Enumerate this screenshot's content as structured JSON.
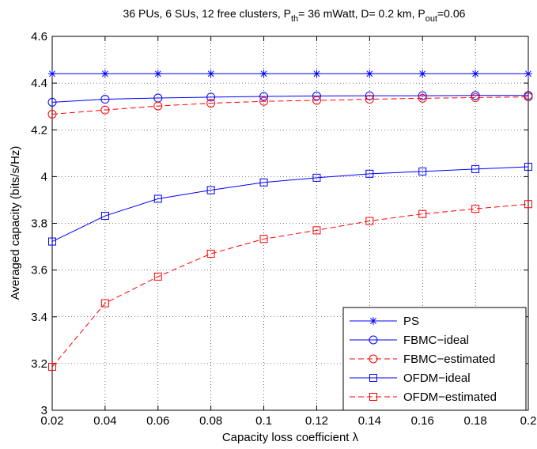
{
  "chart_data": {
    "type": "line",
    "title": {
      "part1": "36 PUs, 6 SUs, 12 free clusters, P",
      "sub1": "th",
      "part2": "= 36 mWatt, D= 0.2 km, P",
      "sub2": "out",
      "part3": "=0.06"
    },
    "xlabel": "Capacity loss coefficient λ",
    "ylabel": "Averaged capacity (bits/s/Hz)",
    "xlim": [
      0.02,
      0.2
    ],
    "ylim": [
      3,
      4.6
    ],
    "x_ticks": [
      "0.02",
      "0.04",
      "0.06",
      "0.08",
      "0.1",
      "0.12",
      "0.14",
      "0.16",
      "0.18",
      "0.2"
    ],
    "y_ticks": [
      "3",
      "3.2",
      "3.4",
      "3.6",
      "3.8",
      "4",
      "4.2",
      "4.4",
      "4.6"
    ],
    "grid": true,
    "legend_position": "bottom-right",
    "x": [
      0.02,
      0.04,
      0.06,
      0.08,
      0.1,
      0.12,
      0.14,
      0.16,
      0.18,
      0.2
    ],
    "series": [
      {
        "name": "PS",
        "color": "#0000ff",
        "dash": "solid",
        "marker": "asterisk",
        "values": [
          4.44,
          4.44,
          4.44,
          4.44,
          4.44,
          4.44,
          4.44,
          4.44,
          4.44,
          4.44
        ]
      },
      {
        "name": "FBMC−ideal",
        "color": "#0000ff",
        "dash": "solid",
        "marker": "circle",
        "values": [
          4.318,
          4.331,
          4.336,
          4.34,
          4.343,
          4.345,
          4.346,
          4.346,
          4.347,
          4.347
        ]
      },
      {
        "name": "FBMC−estimated",
        "color": "#ff0000",
        "dash": "dashed",
        "marker": "circle",
        "values": [
          4.267,
          4.285,
          4.302,
          4.314,
          4.322,
          4.326,
          4.331,
          4.335,
          4.338,
          4.341
        ]
      },
      {
        "name": "OFDM−ideal",
        "color": "#0000ff",
        "dash": "solid",
        "marker": "square",
        "values": [
          3.722,
          3.832,
          3.905,
          3.942,
          3.975,
          3.995,
          4.012,
          4.022,
          4.032,
          4.042
        ]
      },
      {
        "name": "OFDM−estimated",
        "color": "#ff0000",
        "dash": "dashed",
        "marker": "square",
        "values": [
          3.186,
          3.458,
          3.572,
          3.67,
          3.733,
          3.77,
          3.81,
          3.84,
          3.862,
          3.882
        ]
      }
    ]
  }
}
